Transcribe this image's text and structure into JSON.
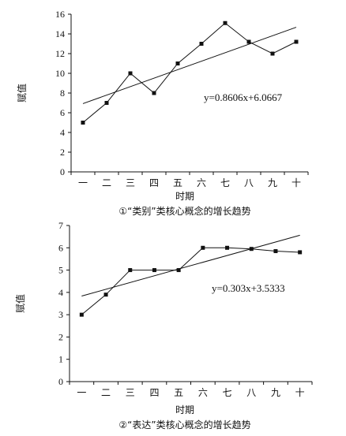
{
  "chart_data": [
    {
      "type": "line",
      "categories": [
        "一",
        "二",
        "三",
        "四",
        "五",
        "六",
        "七",
        "八",
        "九",
        "十"
      ],
      "series": [
        {
          "values": [
            5,
            7,
            10,
            8,
            11,
            13,
            15.1,
            13.2,
            12,
            13.2
          ],
          "color": "#111111",
          "marker": "square"
        }
      ],
      "trendline": {
        "equation": "y=0.8606x+6.0667",
        "slope": 0.8606,
        "intercept": 6.0667
      },
      "ylim": [
        0,
        16
      ],
      "yticks": [
        0,
        2,
        4,
        6,
        8,
        10,
        12,
        14,
        16
      ],
      "ylabel": "赋值",
      "xlabel": "时期",
      "caption": "①“类别”类核心概念的增长趋势",
      "grid": false
    },
    {
      "type": "line",
      "categories": [
        "一",
        "二",
        "三",
        "四",
        "五",
        "六",
        "七",
        "八",
        "九",
        "十"
      ],
      "series": [
        {
          "values": [
            3,
            3.9,
            5,
            5,
            5,
            6,
            6,
            5.95,
            5.85,
            5.8
          ],
          "color": "#111111",
          "marker": "square"
        }
      ],
      "trendline": {
        "equation": "y=0.303x+3.5333",
        "slope": 0.303,
        "intercept": 3.5333
      },
      "ylim": [
        0,
        7
      ],
      "yticks": [
        0,
        1,
        2,
        3,
        4,
        5,
        6,
        7
      ],
      "ylabel": "赋值",
      "xlabel": "时期",
      "caption": "②“表达”类核心概念的增长趋势",
      "grid": false
    }
  ]
}
